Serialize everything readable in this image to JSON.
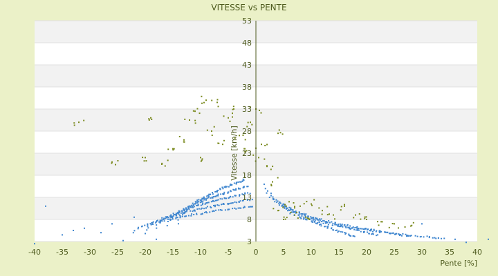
{
  "chart_data": {
    "type": "scatter",
    "title": "VITESSE vs PENTE",
    "xlabel": "Pente [%]",
    "ylabel": "Vitesse [km/h]",
    "xlim": [
      -40,
      40
    ],
    "ylim": [
      3,
      53
    ],
    "x_ticks": [
      "-40",
      "-35",
      "-30",
      "-25",
      "-20",
      "-15",
      "-10",
      "-5",
      "0",
      "5",
      "10",
      "15",
      "20",
      "25",
      "30",
      "35",
      "40"
    ],
    "y_ticks": [
      "53",
      "48",
      "43",
      "38",
      "33",
      "28",
      "23",
      "18",
      "13",
      "8",
      "3"
    ],
    "grid": true,
    "legend": "none",
    "series": [
      {
        "color": "#3f86cf",
        "description": "dense quantized curves: speed decreases with |slope|",
        "curves": [
          {
            "x_from": -14,
            "x_to": -2,
            "y_from": 7.0,
            "y_to": 17.0
          },
          {
            "x_from": -16,
            "x_to": -1.5,
            "y_from": 6.5,
            "y_to": 15.5
          },
          {
            "x_from": -18,
            "x_to": -1.2,
            "y_from": 6.0,
            "y_to": 14.0
          },
          {
            "x_from": -20,
            "x_to": -0.9,
            "y_from": 5.5,
            "y_to": 12.5
          },
          {
            "x_from": -22,
            "x_to": -0.6,
            "y_from": 5.0,
            "y_to": 11.0
          },
          {
            "x_from": 1.5,
            "x_to": 18,
            "y_from": 16.0,
            "y_to": 4.0
          },
          {
            "x_from": 3.0,
            "x_to": 22,
            "y_from": 14.0,
            "y_to": 4.5
          },
          {
            "x_from": 4.5,
            "x_to": 28,
            "y_from": 12.0,
            "y_to": 4.2
          },
          {
            "x_from": 6.0,
            "x_to": 34,
            "y_from": 10.0,
            "y_to": 3.6
          }
        ],
        "points": [
          [
            -40,
            2.5
          ],
          [
            -38,
            11.0
          ],
          [
            -35,
            4.5
          ],
          [
            -33,
            5.5
          ],
          [
            -31,
            6.0
          ],
          [
            -28,
            5.0
          ],
          [
            -26,
            7.0
          ],
          [
            -24,
            3.2
          ],
          [
            -22,
            8.5
          ],
          [
            -20,
            4.8
          ],
          [
            -18,
            3.5
          ],
          [
            30,
            7.0
          ],
          [
            33,
            3.8
          ],
          [
            36,
            3.5
          ],
          [
            38,
            2.8
          ],
          [
            42,
            3.5
          ]
        ]
      },
      {
        "color": "#7a8a1e",
        "description": "scattered olive points, higher speeds at moderate slopes",
        "points": [
          [
            -32,
            30.0
          ],
          [
            -26,
            21.0
          ],
          [
            -20,
            22.0
          ],
          [
            -19,
            31.0
          ],
          [
            -17,
            20.5
          ],
          [
            -15,
            24.0
          ],
          [
            -13,
            26.0
          ],
          [
            -12,
            30.5
          ],
          [
            -11,
            32.5
          ],
          [
            -10,
            22.0
          ],
          [
            -9,
            35.0
          ],
          [
            -8,
            28.0
          ],
          [
            -7,
            34.5
          ],
          [
            -6,
            25.0
          ],
          [
            -5,
            31.0
          ],
          [
            -4,
            33.0
          ],
          [
            -3,
            27.0
          ],
          [
            -2,
            24.0
          ],
          [
            -1,
            30.0
          ],
          [
            0,
            33.0
          ],
          [
            0.5,
            22.0
          ],
          [
            1,
            25.0
          ],
          [
            2,
            20.0
          ],
          [
            3,
            16.5
          ],
          [
            4,
            27.5
          ],
          [
            4,
            10.0
          ],
          [
            5,
            8.0
          ],
          [
            6,
            12.0
          ],
          [
            7,
            9.0
          ],
          [
            8,
            11.0
          ],
          [
            9,
            8.5
          ],
          [
            10,
            11.5
          ],
          [
            12,
            10.0
          ],
          [
            14,
            9.0
          ],
          [
            16,
            11.0
          ],
          [
            18,
            9.0
          ],
          [
            20,
            8.0
          ],
          [
            22,
            7.5
          ],
          [
            25,
            7.0
          ],
          [
            28,
            6.5
          ]
        ]
      }
    ]
  }
}
